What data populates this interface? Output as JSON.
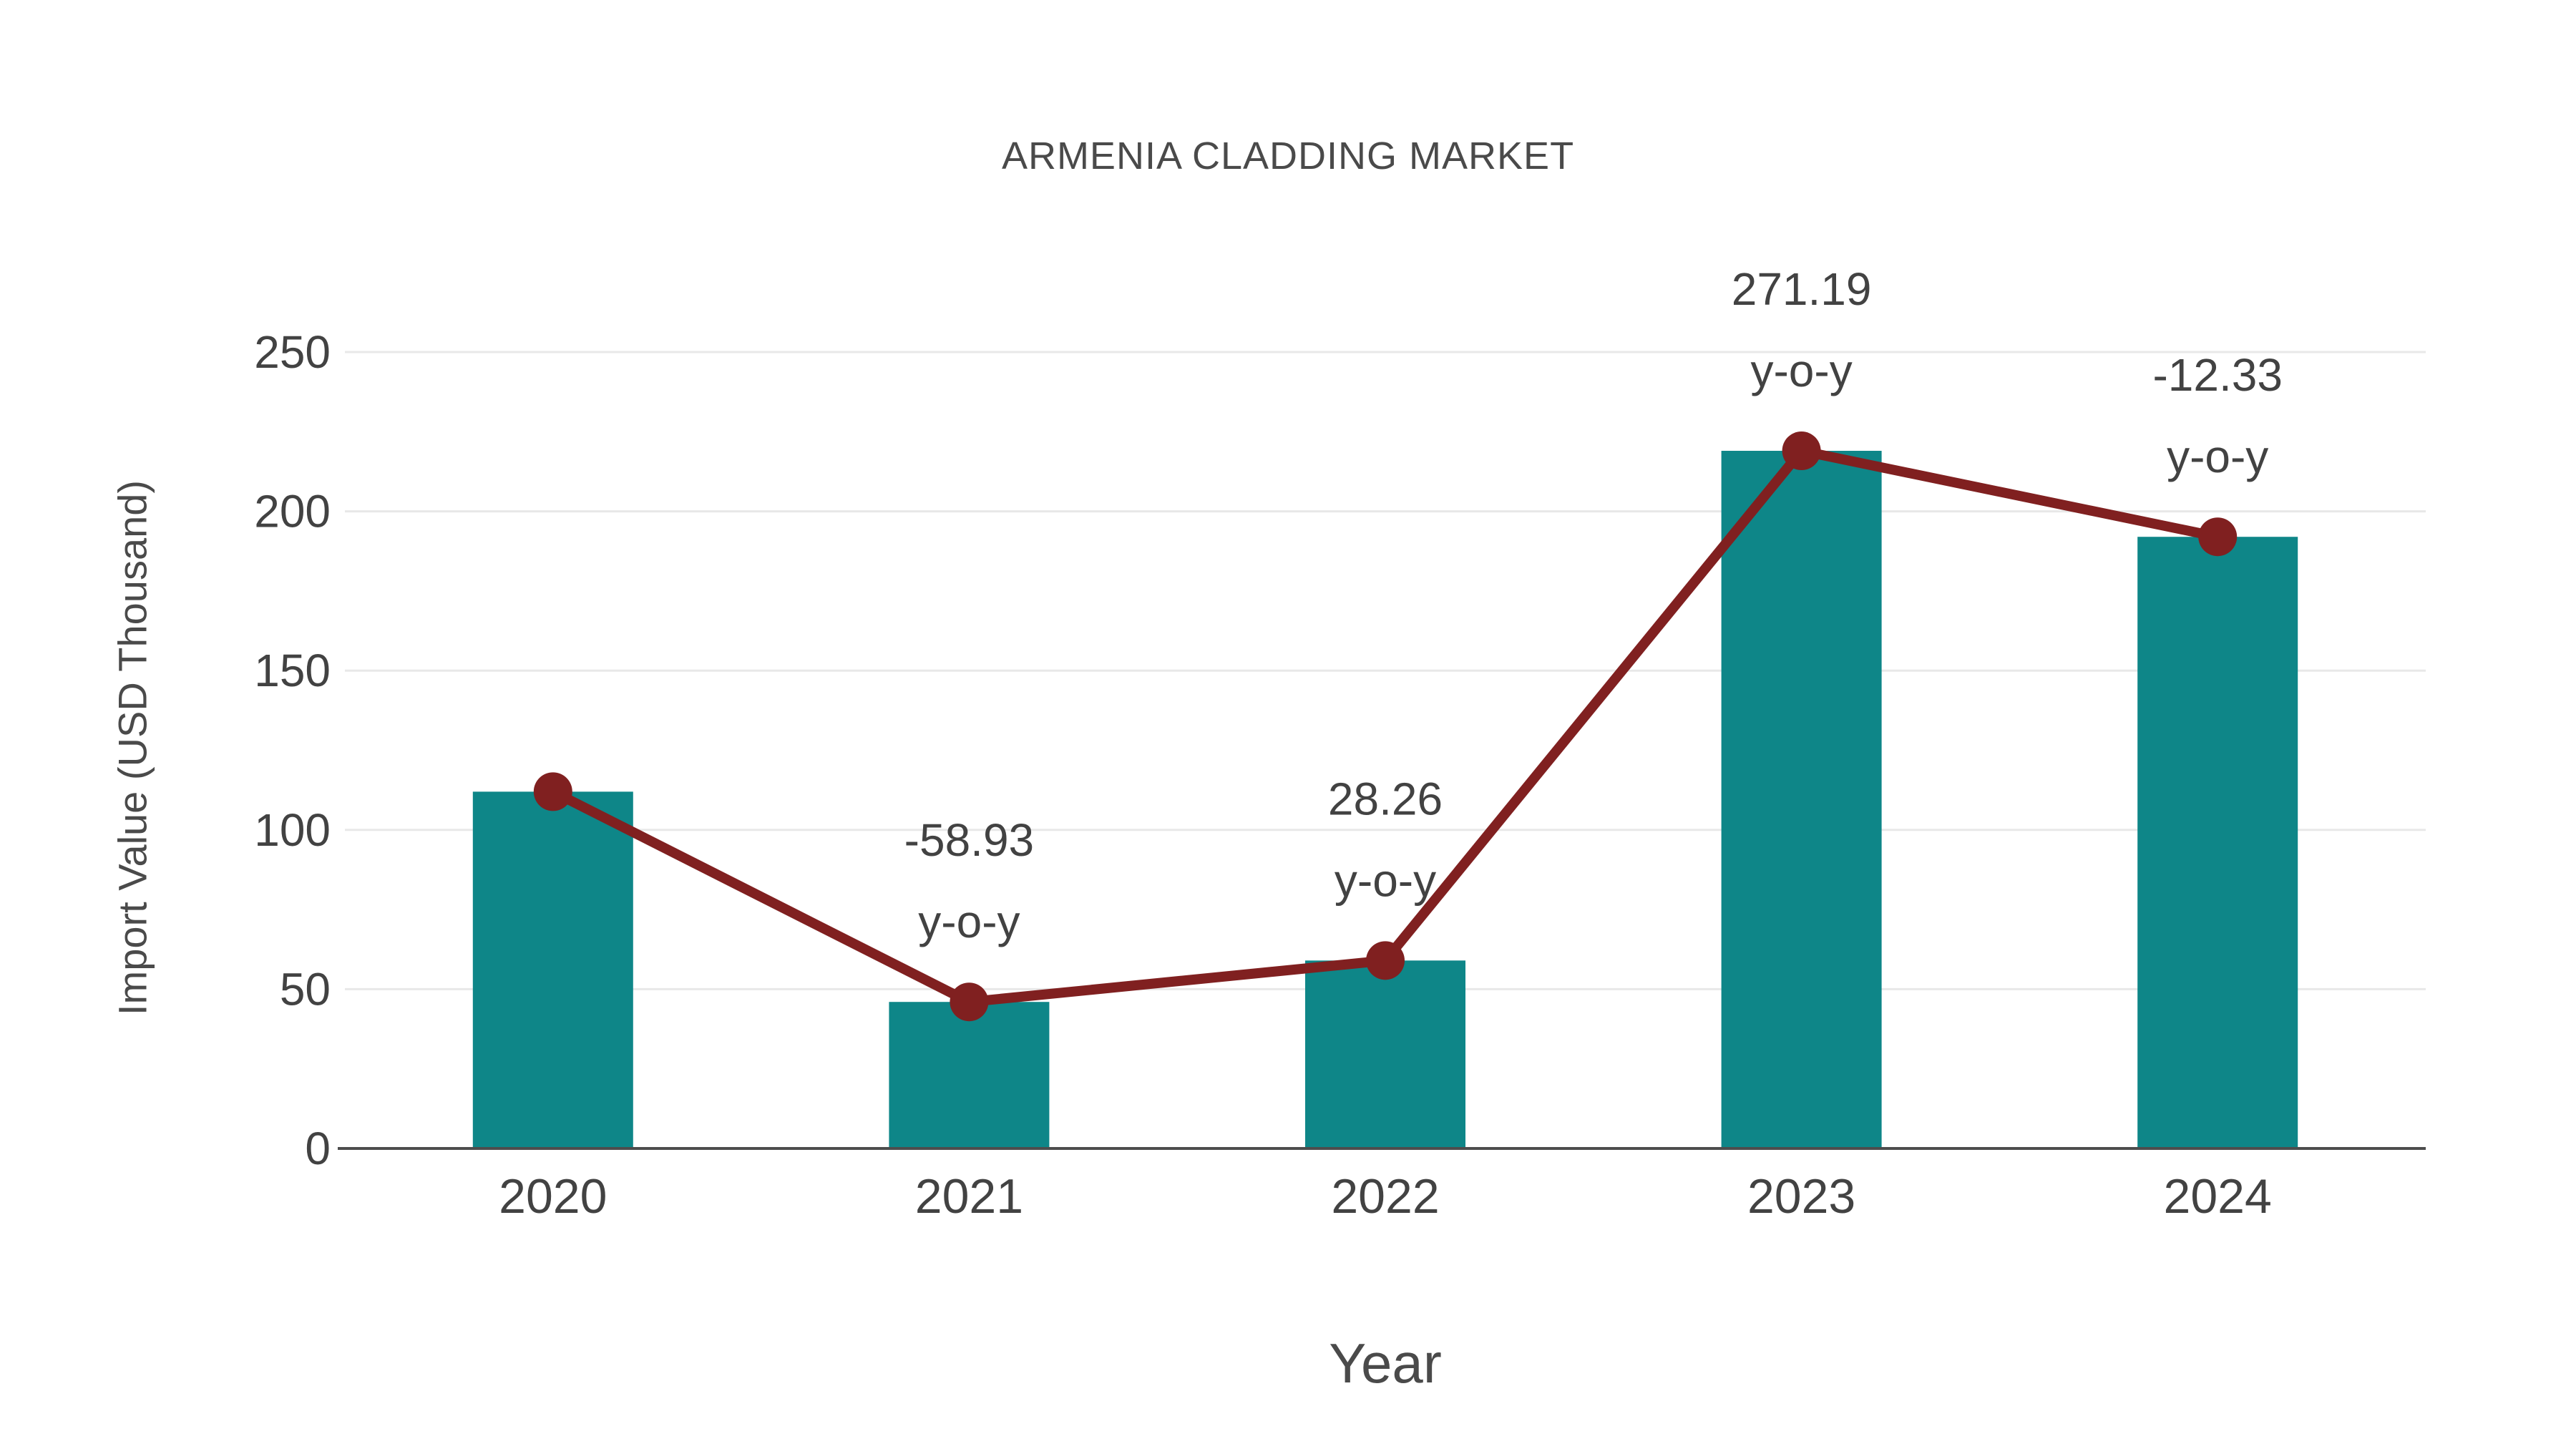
{
  "chart_data": {
    "type": "bar",
    "title": "ARMENIA CLADDING MARKET",
    "xlabel": "Year",
    "ylabel": "Import Value (USD Thousand)",
    "categories": [
      "2020",
      "2021",
      "2022",
      "2023",
      "2024"
    ],
    "values": [
      112,
      46,
      59,
      219,
      192
    ],
    "series": [
      {
        "name": "import-value-bars",
        "type": "bar",
        "values": [
          112,
          46,
          59,
          219,
          192
        ]
      },
      {
        "name": "import-value-trend-line",
        "type": "line",
        "values": [
          112,
          46,
          59,
          219,
          192
        ]
      }
    ],
    "yticks": [
      "0",
      "50",
      "100",
      "150",
      "200",
      "250"
    ],
    "ytick_values": [
      0,
      50,
      100,
      150,
      200,
      250
    ],
    "ylim": [
      0,
      250
    ],
    "grid": true,
    "legend_position": "none",
    "annotations": [
      {
        "category": "2021",
        "line1": "-58.93",
        "line2": "y-o-y"
      },
      {
        "category": "2022",
        "line1": "28.26",
        "line2": "y-o-y"
      },
      {
        "category": "2023",
        "line1": "271.19",
        "line2": "y-o-y"
      },
      {
        "category": "2024",
        "line1": "-12.33",
        "line2": "y-o-y"
      }
    ],
    "colors": {
      "bar": "#0E8688",
      "line": "#802020",
      "marker": "#802020",
      "title_text": "#4A4A4A",
      "tick_text": "#424242",
      "annotation_text": "#424242",
      "grid_line": "#E8E8E8",
      "axis_line": "#4D4D4D",
      "background": "#FFFFFF"
    }
  }
}
